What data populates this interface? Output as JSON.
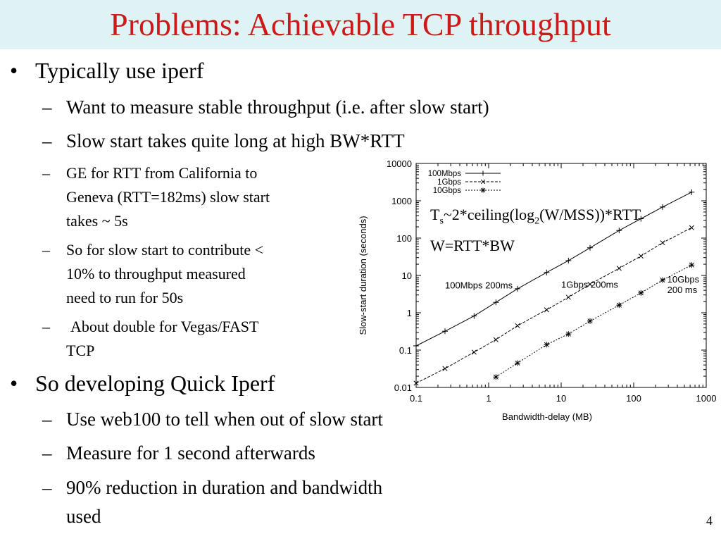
{
  "title": "Problems: Achievable TCP throughput",
  "bullets": {
    "b1": "Typically use iperf",
    "b1_1": "Want to measure stable throughput (i.e. after slow start)",
    "b1_2": "Slow start takes quite long at high BW*RTT",
    "b1_3_l1": "GE for RTT from California to",
    "b1_3_l2": "Geneva (RTT=182ms) slow start",
    "b1_3_l3": "takes ~ 5s",
    "b1_4_l1": "So for slow start to contribute < ",
    "b1_4_l2": "10% to throughput measured",
    "b1_4_l3": "need to run for 50s",
    "b1_5_l1": "About double for Vegas/FAST",
    "b1_5_l2": "TCP",
    "b2": "So developing Quick Iperf",
    "b2_1": "Use web100 to tell when out of slow start",
    "b2_2": "Measure for 1 second afterwards",
    "b2_3_l1": "90% reduction in duration and bandwidth",
    "b2_3_l2": "used"
  },
  "bullet_symbols": {
    "dot": "•",
    "dash": "–"
  },
  "formula": {
    "T": "T",
    "s": "s",
    "part1": "~2*ceiling(log",
    "sub2": "2",
    "part2": "(W/MSS))*RTT",
    "line2": "W=RTT*BW"
  },
  "page_number": "4",
  "colors": {
    "title": "#cc1a1a",
    "title_bg": "#dff2f4"
  },
  "chart_data": {
    "type": "line",
    "title": "",
    "xlabel": "Bandwidth-delay (MB)",
    "ylabel": "Slow-start duration (seconds)",
    "xscale": "log",
    "yscale": "log",
    "xlim": [
      0.1,
      1000
    ],
    "ylim": [
      0.01,
      10000
    ],
    "x_ticks": [
      {
        "v": 0.1,
        "label": "0.1"
      },
      {
        "v": 1,
        "label": "1"
      },
      {
        "v": 10,
        "label": "10"
      },
      {
        "v": 100,
        "label": "100"
      },
      {
        "v": 1000,
        "label": "1000"
      }
    ],
    "y_ticks": [
      {
        "v": 0.01,
        "label": "0.01"
      },
      {
        "v": 0.1,
        "label": "0.1"
      },
      {
        "v": 1,
        "label": "1"
      },
      {
        "v": 10,
        "label": "10"
      },
      {
        "v": 100,
        "label": "100"
      },
      {
        "v": 1000,
        "label": "1000"
      },
      {
        "v": 10000,
        "label": "10000"
      }
    ],
    "legend": "top-left",
    "series": [
      {
        "name": "100Mbps",
        "marker": "+",
        "dash": "",
        "x": [
          0.1,
          0.25,
          0.63,
          1.26,
          2.5,
          6.3,
          12.6,
          25,
          63,
          126,
          250,
          630
        ],
        "y": [
          0.13,
          0.32,
          0.82,
          1.9,
          4.4,
          12,
          25,
          55,
          160,
          330,
          680,
          1700
        ]
      },
      {
        "name": "1Gbps",
        "marker": "x",
        "dash": "4,2",
        "x": [
          0.1,
          0.25,
          0.63,
          1.26,
          2.5,
          6.3,
          12.6,
          25,
          63,
          126,
          250,
          630
        ],
        "y": [
          0.013,
          0.032,
          0.088,
          0.19,
          0.45,
          1.2,
          2.6,
          5.8,
          15.5,
          33,
          75,
          190
        ]
      },
      {
        "name": "10Gbps",
        "marker": "*",
        "dash": "2,2",
        "x": [
          1.26,
          2.5,
          6.3,
          12.6,
          25,
          63,
          126,
          250,
          630
        ],
        "y": [
          0.019,
          0.045,
          0.14,
          0.27,
          0.6,
          1.6,
          3.4,
          7.5,
          19
        ]
      }
    ],
    "annotations": [
      {
        "text": "100Mbps 200ms",
        "x": 0.25,
        "y": 4.5
      },
      {
        "text": "1Gbps 200ms",
        "x": 10,
        "y": 4.7
      },
      {
        "text": "10Gbps",
        "x": 290,
        "y": 6.5
      },
      {
        "text": "200 ms",
        "x": 290,
        "y": 3.4
      }
    ],
    "grid": false
  }
}
